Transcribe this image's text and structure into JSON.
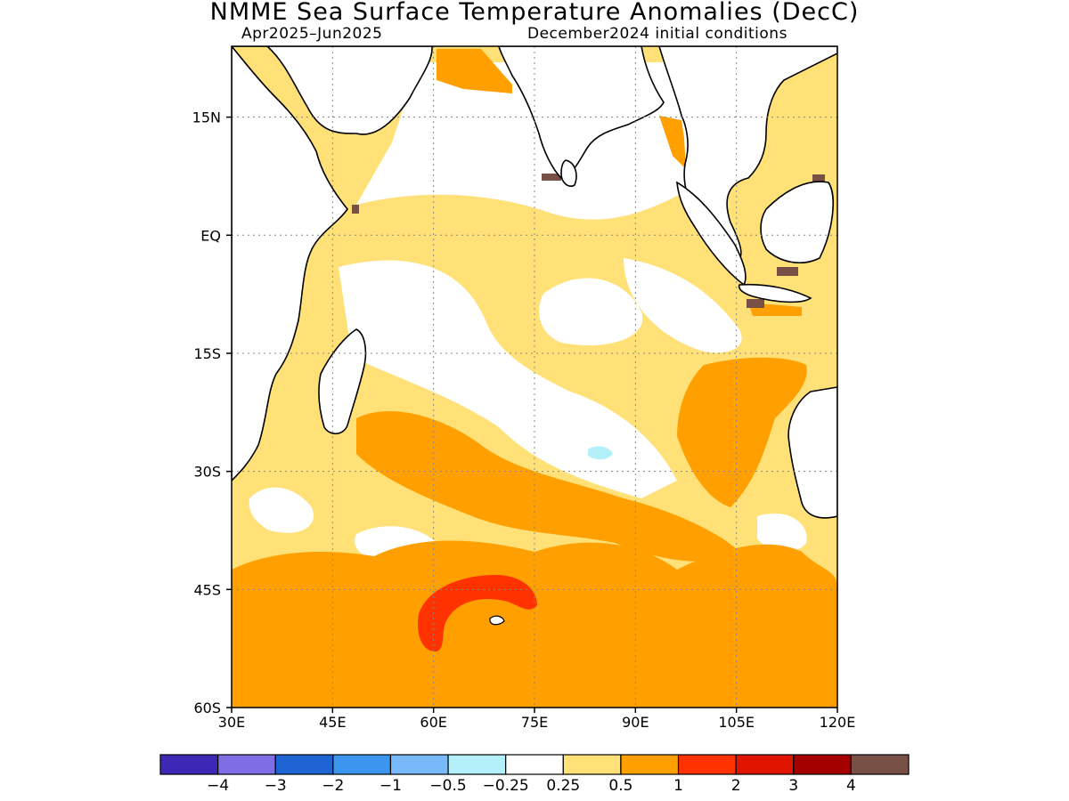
{
  "title": "NMME Sea Surface Temperature Anomalies (DecC)",
  "subtitle_left": "Apr2025–Jun2025",
  "subtitle_right": "December2024 initial conditions",
  "map": {
    "lon_range": [
      30,
      120
    ],
    "lat_range": [
      -60,
      24
    ],
    "lon_ticks": [
      {
        "value": 30,
        "label": "30E"
      },
      {
        "value": 45,
        "label": "45E"
      },
      {
        "value": 60,
        "label": "60E"
      },
      {
        "value": 75,
        "label": "75E"
      },
      {
        "value": 90,
        "label": "90E"
      },
      {
        "value": 105,
        "label": "105E"
      },
      {
        "value": 120,
        "label": "120E"
      }
    ],
    "lat_ticks": [
      {
        "value": 15,
        "label": "15N"
      },
      {
        "value": 0,
        "label": "EQ"
      },
      {
        "value": -15,
        "label": "15S"
      },
      {
        "value": -30,
        "label": "30S"
      },
      {
        "value": -45,
        "label": "45S"
      },
      {
        "value": -60,
        "label": "60S"
      }
    ],
    "grid": true,
    "land_color": "#ffffff",
    "coastline_color": "#000000"
  },
  "colorbar": {
    "colors": [
      "#3c28b4",
      "#7d6ee6",
      "#1e64d2",
      "#3c96f0",
      "#78b9fa",
      "#b4f0fa",
      "#ffffff",
      "#ffe178",
      "#ffa000",
      "#ff3200",
      "#e11400",
      "#a50000",
      "#785046"
    ],
    "labels": [
      "−4",
      "−3",
      "−2",
      "−1",
      "−0.5",
      "−0.25",
      "0.25",
      "0.5",
      "1",
      "2",
      "3",
      "4"
    ]
  }
}
